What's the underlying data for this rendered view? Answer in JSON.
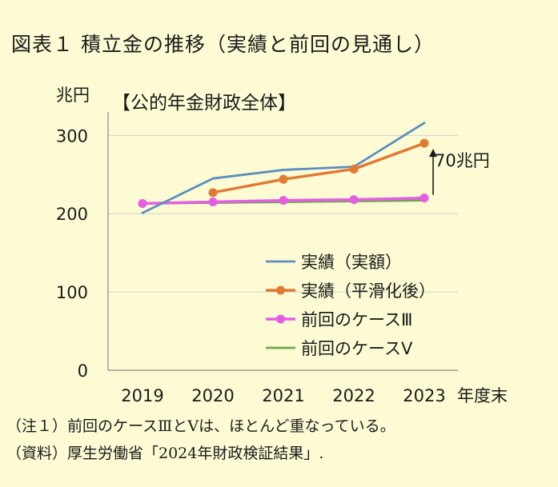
{
  "figure_title": "図表１ 積立金の推移（実績と前回の見通し）",
  "chart_data": {
    "type": "line",
    "title": "【公的年金財政全体】",
    "y_unit": "兆円",
    "xlabel_suffix": "年度末",
    "categories": [
      "2019",
      "2020",
      "2021",
      "2022",
      "2023"
    ],
    "yticks": [
      0,
      100,
      200,
      300
    ],
    "ylim": [
      0,
      330
    ],
    "grid": true,
    "legend_position": "bottom-right",
    "series": [
      {
        "name": "実績（実額）",
        "color": "#5b8fbf",
        "markers": false,
        "values": [
          201,
          245,
          256,
          260,
          316
        ]
      },
      {
        "name": "実績（平滑化後）",
        "color": "#e07b35",
        "markers": true,
        "values": [
          null,
          227,
          244,
          257,
          290
        ]
      },
      {
        "name": "前回のケースⅢ",
        "color": "#e45ee4",
        "markers": true,
        "values": [
          213,
          215,
          217,
          218,
          220
        ]
      },
      {
        "name": "前回のケースⅤ",
        "color": "#6fa84d",
        "markers": false,
        "values": [
          213,
          214,
          215,
          216,
          217
        ]
      }
    ],
    "annotation": "70兆円"
  },
  "notes": [
    "（注１）前回のケースⅢとⅤは、ほとんど重なっている。",
    "（資料）厚生労働省「2024年財政検証結果」."
  ]
}
